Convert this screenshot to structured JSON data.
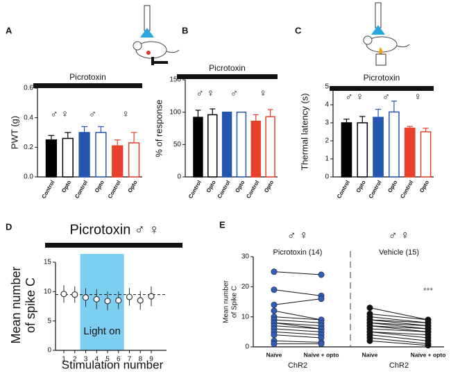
{
  "chart_data": [
    {
      "type": "bar",
      "label": "A",
      "title": "Picrotoxin",
      "ylabel": "PWT (g)",
      "categories": [
        "Control",
        "Opto",
        "Control",
        "Opto",
        "Control",
        "Opto"
      ],
      "values": [
        0.25,
        0.26,
        0.3,
        0.3,
        0.21,
        0.23
      ],
      "errors": [
        0.03,
        0.04,
        0.04,
        0.04,
        0.04,
        0.07
      ],
      "colors": [
        "#000000",
        "#000000",
        "#2456b0",
        "#2456b0",
        "#e8402a",
        "#e8402a"
      ],
      "filled": [
        true,
        false,
        true,
        false,
        true,
        false
      ],
      "annotations": [
        "♂ ♀",
        "♂",
        "♀"
      ],
      "ylim": [
        0,
        0.6
      ],
      "yticks": [
        {
          "value": 0,
          "label": "0.0"
        },
        {
          "value": 0.2,
          "label": "0.2"
        },
        {
          "value": 0.4,
          "label": "0.4"
        },
        {
          "value": 0.6,
          "label": "0.6"
        }
      ]
    },
    {
      "type": "bar",
      "label": "B",
      "title": "Picrotoxin",
      "ylabel": "% of response",
      "categories": [
        "Control",
        "Opto",
        "Control",
        "Opto",
        "Control",
        "Opto"
      ],
      "values": [
        92,
        96,
        100,
        100,
        86,
        93
      ],
      "errors": [
        11,
        9,
        0,
        0,
        10,
        11
      ],
      "colors": [
        "#000000",
        "#000000",
        "#2456b0",
        "#2456b0",
        "#e8402a",
        "#e8402a"
      ],
      "filled": [
        true,
        false,
        true,
        false,
        true,
        false
      ],
      "annotations": [
        "♂ ♀",
        "♂",
        "♀"
      ],
      "ylim": [
        0,
        150
      ],
      "yticks": [
        0,
        50,
        100,
        150
      ]
    },
    {
      "type": "bar",
      "label": "C",
      "title": "Picrotoxin",
      "ylabel": "Thermal latency (s)",
      "categories": [
        "Control",
        "Opto",
        "Control",
        "Opto",
        "Control",
        "Opto"
      ],
      "values": [
        3.0,
        3.0,
        3.3,
        3.6,
        2.7,
        2.5
      ],
      "errors": [
        0.2,
        0.35,
        0.45,
        0.6,
        0.1,
        0.2
      ],
      "colors": [
        "#000000",
        "#000000",
        "#2456b0",
        "#2456b0",
        "#e8402a",
        "#e8402a"
      ],
      "filled": [
        true,
        false,
        true,
        false,
        true,
        false
      ],
      "annotations": [
        "♂ ♀",
        "♂",
        "♀"
      ],
      "ylim": [
        0,
        5
      ],
      "yticks": [
        0,
        1,
        2,
        3,
        4,
        5
      ]
    },
    {
      "type": "line",
      "label": "D",
      "title": "Picrotoxin ♂ ♀",
      "ylabel": [
        "Mean number",
        "of spike C"
      ],
      "xlabel": "Stimulation number",
      "categories": [
        "1",
        "2",
        "3",
        "4",
        "5",
        "6",
        "7",
        "8",
        "9"
      ],
      "values": [
        9.6,
        9.5,
        9.0,
        8.7,
        8.4,
        8.5,
        9.1,
        8.5,
        9.2
      ],
      "errors": [
        1.5,
        1.4,
        1.6,
        1.7,
        1.6,
        1.5,
        1.5,
        1.6,
        1.7
      ],
      "reference_line": 9.5,
      "span": {
        "label": "Light on",
        "start": "3",
        "end": "6",
        "color": "#7ccfee"
      },
      "ylim": [
        0,
        15
      ],
      "yticks": [
        0,
        5,
        10,
        15
      ]
    },
    {
      "type": "paired",
      "label": "E",
      "ylabel": [
        "Mean number",
        "of Spike C"
      ],
      "ylim": [
        0,
        30
      ],
      "yticks": [
        0,
        10,
        20,
        30
      ],
      "groups": [
        {
          "name": "Picrotoxin (14)",
          "symbols": "♂ ♀",
          "xlabel": "ChR2",
          "color": "#2f5db8",
          "categories": [
            "Naïve",
            "Naïve + opto"
          ],
          "values": [
            [
              25,
              19,
              14,
              12,
              10,
              9,
              8,
              8,
              7,
              6,
              5,
              4,
              2,
              1
            ],
            [
              24,
              17,
              16,
              9,
              9,
              8,
              7,
              6,
              6,
              5,
              4,
              3,
              1.5,
              1
            ]
          ]
        },
        {
          "name": "Vehicle (15)",
          "symbols": "♂ ♀",
          "xlabel": "ChR2",
          "color": "#111111",
          "annotation": "***",
          "categories": [
            "Naïve",
            "Naïve + opto"
          ],
          "values": [
            [
              13,
              11,
              10,
              9,
              9,
              8,
              8,
              7,
              7,
              6,
              5,
              5,
              4,
              3,
              2
            ],
            [
              9,
              9,
              8,
              8,
              7,
              7,
              6,
              6,
              5,
              5,
              4,
              3,
              2,
              1,
              0.5
            ]
          ]
        }
      ]
    }
  ]
}
